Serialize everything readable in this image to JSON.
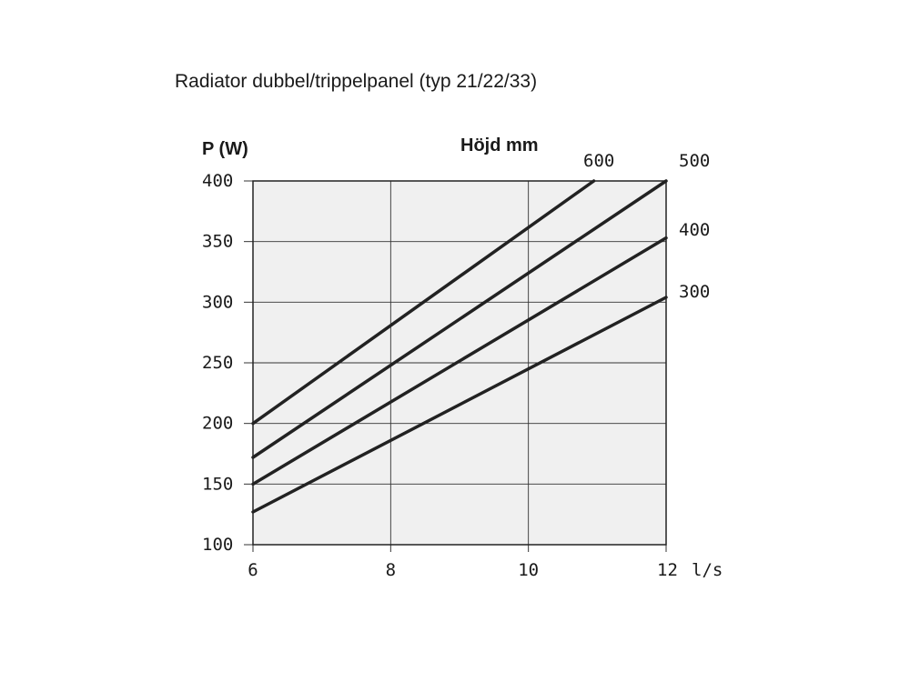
{
  "chart_data": {
    "type": "line",
    "title": "Radiator dubbel/trippelpanel (typ 21/22/33)",
    "ylabel": "P (W)",
    "xunit": "l/s",
    "legend_title": "Höjd mm",
    "xlim": [
      6,
      12
    ],
    "ylim": [
      100,
      400
    ],
    "x_ticks": [
      6,
      8,
      10,
      12
    ],
    "y_ticks": [
      100,
      150,
      200,
      250,
      300,
      350,
      400
    ],
    "grid": true,
    "background": "#f0f0f0",
    "line_color": "#222222",
    "series": [
      {
        "name": "600",
        "x": [
          6,
          10.95
        ],
        "y": [
          200,
          400
        ]
      },
      {
        "name": "500",
        "x": [
          6,
          12
        ],
        "y": [
          172,
          400
        ]
      },
      {
        "name": "400",
        "x": [
          6,
          12
        ],
        "y": [
          150,
          353
        ]
      },
      {
        "name": "300",
        "x": [
          6,
          12
        ],
        "y": [
          127,
          304
        ]
      }
    ]
  }
}
